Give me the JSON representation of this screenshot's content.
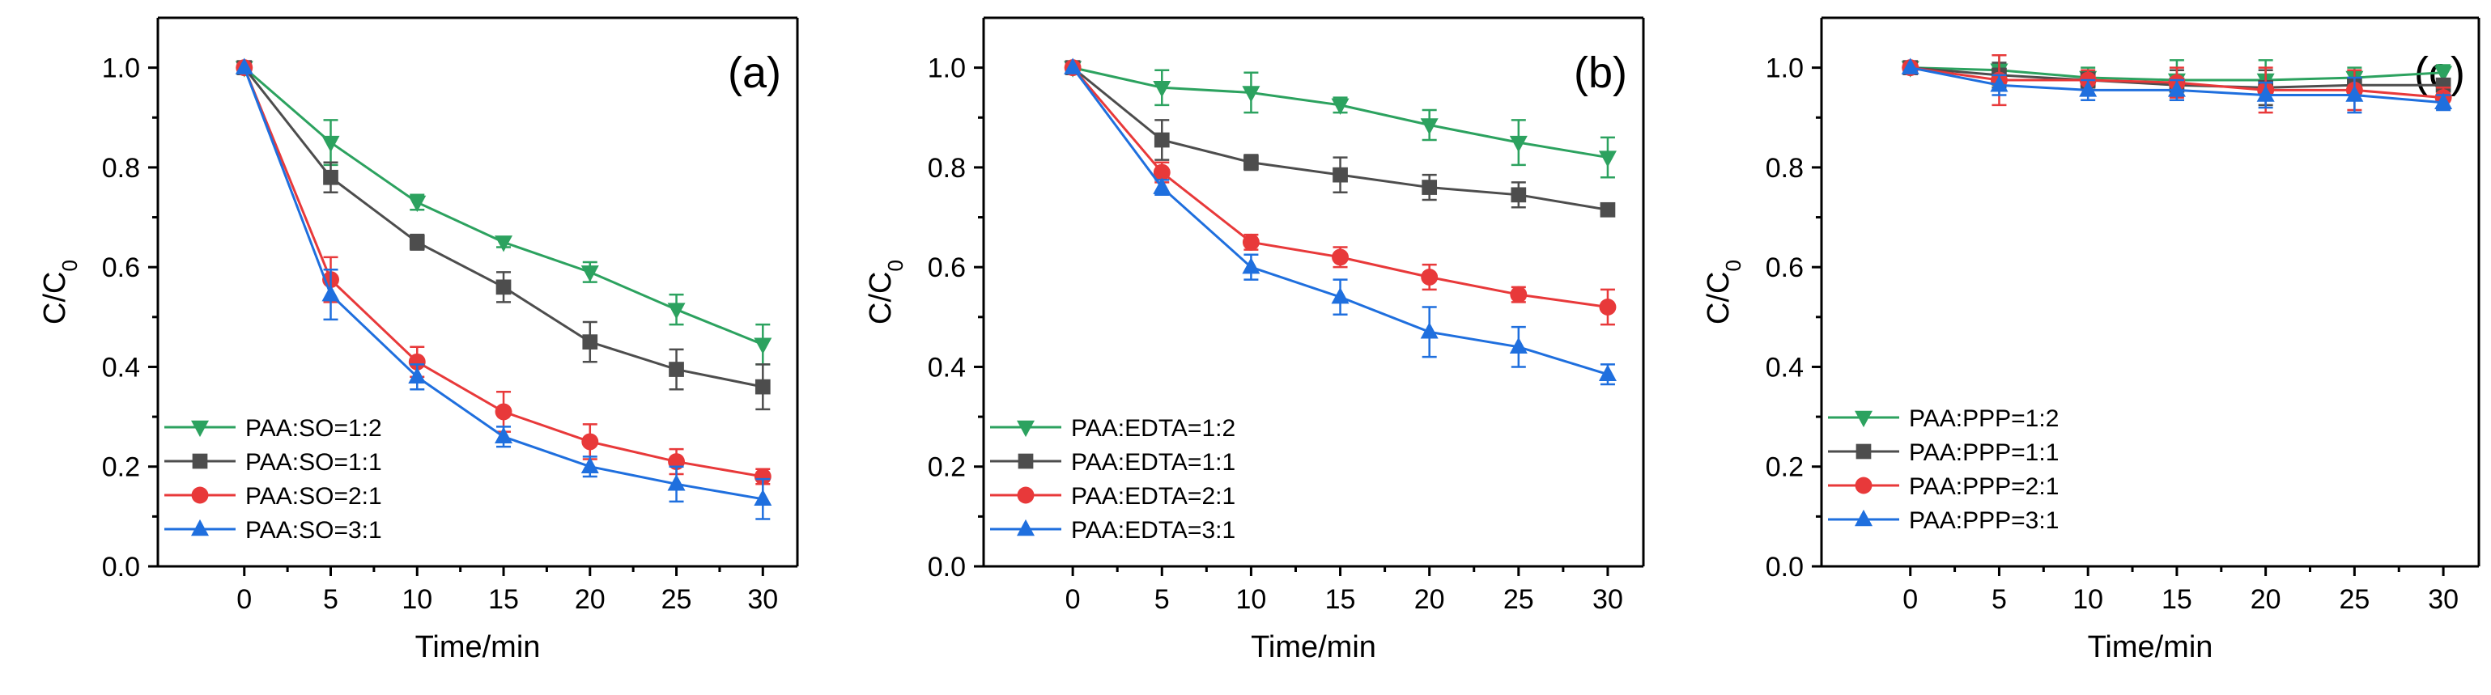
{
  "colors": {
    "green": "#2ca25f",
    "gray": "#4d4d4d",
    "red": "#e8393a",
    "blue": "#1f6fde"
  },
  "chart_data": [
    {
      "type": "line",
      "panel_label": "(a)",
      "xlabel": "Time/min",
      "ylabel": "C/C",
      "ylabel_sub": "0",
      "xlim": [
        -5,
        32
      ],
      "ylim": [
        0,
        1.1
      ],
      "xticks": [
        0,
        5,
        10,
        15,
        20,
        25,
        30
      ],
      "yticks": [
        0.0,
        0.2,
        0.4,
        0.6,
        0.8,
        1.0
      ],
      "ytick_labels": [
        "0.0",
        "0.2",
        "0.4",
        "0.6",
        "0.8",
        "1.0"
      ],
      "legend_position": "bottom-left",
      "x": [
        0,
        5,
        10,
        15,
        20,
        25,
        30
      ],
      "series": [
        {
          "name": "PAA:SO=1:2",
          "marker": "triangle-down",
          "color_key": "green",
          "values": [
            1.0,
            0.85,
            0.73,
            0.65,
            0.59,
            0.515,
            0.445
          ],
          "errors": [
            0,
            0.045,
            0.015,
            0.01,
            0.02,
            0.03,
            0.04
          ]
        },
        {
          "name": "PAA:SO=1:1",
          "marker": "square",
          "color_key": "gray",
          "values": [
            1.0,
            0.78,
            0.65,
            0.56,
            0.45,
            0.395,
            0.36
          ],
          "errors": [
            0,
            0.03,
            0.015,
            0.03,
            0.04,
            0.04,
            0.045
          ]
        },
        {
          "name": "PAA:SO=2:1",
          "marker": "circle",
          "color_key": "red",
          "values": [
            1.0,
            0.575,
            0.41,
            0.31,
            0.25,
            0.21,
            0.18
          ],
          "errors": [
            0,
            0.045,
            0.03,
            0.04,
            0.035,
            0.025,
            0.015
          ]
        },
        {
          "name": "PAA:SO=3:1",
          "marker": "triangle-up",
          "color_key": "blue",
          "values": [
            1.0,
            0.545,
            0.38,
            0.26,
            0.2,
            0.165,
            0.135
          ],
          "errors": [
            0,
            0.05,
            0.025,
            0.02,
            0.02,
            0.035,
            0.04
          ]
        }
      ]
    },
    {
      "type": "line",
      "panel_label": "(b)",
      "xlabel": "Time/min",
      "ylabel": "C/C",
      "ylabel_sub": "0",
      "xlim": [
        -5,
        32
      ],
      "ylim": [
        0,
        1.1
      ],
      "xticks": [
        0,
        5,
        10,
        15,
        20,
        25,
        30
      ],
      "yticks": [
        0.0,
        0.2,
        0.4,
        0.6,
        0.8,
        1.0
      ],
      "ytick_labels": [
        "0.0",
        "0.2",
        "0.4",
        "0.6",
        "0.8",
        "1.0"
      ],
      "legend_position": "bottom-left",
      "x": [
        0,
        5,
        10,
        15,
        20,
        25,
        30
      ],
      "series": [
        {
          "name": "PAA:EDTA=1:2",
          "marker": "triangle-down",
          "color_key": "green",
          "values": [
            1.0,
            0.96,
            0.95,
            0.925,
            0.885,
            0.85,
            0.82
          ],
          "errors": [
            0,
            0.035,
            0.04,
            0.015,
            0.03,
            0.045,
            0.04
          ]
        },
        {
          "name": "PAA:EDTA=1:1",
          "marker": "square",
          "color_key": "gray",
          "values": [
            1.0,
            0.855,
            0.81,
            0.785,
            0.76,
            0.745,
            0.715
          ],
          "errors": [
            0,
            0.04,
            0.015,
            0.035,
            0.025,
            0.025,
            0.01
          ]
        },
        {
          "name": "PAA:EDTA=2:1",
          "marker": "circle",
          "color_key": "red",
          "values": [
            1.0,
            0.79,
            0.65,
            0.62,
            0.58,
            0.545,
            0.52
          ],
          "errors": [
            0,
            0.02,
            0.015,
            0.02,
            0.025,
            0.015,
            0.035
          ]
        },
        {
          "name": "PAA:EDTA=3:1",
          "marker": "triangle-up",
          "color_key": "blue",
          "values": [
            1.0,
            0.76,
            0.6,
            0.54,
            0.47,
            0.44,
            0.385
          ],
          "errors": [
            0,
            0.015,
            0.025,
            0.035,
            0.05,
            0.04,
            0.02
          ]
        }
      ]
    },
    {
      "type": "line",
      "panel_label": "(c)",
      "xlabel": "Time/min",
      "ylabel": "C/C",
      "ylabel_sub": "0",
      "xlim": [
        -5,
        32
      ],
      "ylim": [
        0,
        1.1
      ],
      "xticks": [
        0,
        5,
        10,
        15,
        20,
        25,
        30
      ],
      "yticks": [
        0.0,
        0.2,
        0.4,
        0.6,
        0.8,
        1.0
      ],
      "ytick_labels": [
        "0.0",
        "0.2",
        "0.4",
        "0.6",
        "0.8",
        "1.0"
      ],
      "legend_position": "bottom-left",
      "x": [
        0,
        5,
        10,
        15,
        20,
        25,
        30
      ],
      "series": [
        {
          "name": "PAA:PPP=1:2",
          "marker": "triangle-down",
          "color_key": "green",
          "values": [
            1.0,
            0.995,
            0.98,
            0.975,
            0.975,
            0.98,
            0.99
          ],
          "errors": [
            0,
            0.03,
            0.02,
            0.04,
            0.04,
            0.02,
            0.015
          ]
        },
        {
          "name": "PAA:PPP=1:1",
          "marker": "square",
          "color_key": "gray",
          "values": [
            1.0,
            0.985,
            0.975,
            0.965,
            0.96,
            0.965,
            0.965
          ],
          "errors": [
            0,
            0.025,
            0.015,
            0.03,
            0.035,
            0.03,
            0.01
          ]
        },
        {
          "name": "PAA:PPP=2:1",
          "marker": "circle",
          "color_key": "red",
          "values": [
            1.0,
            0.975,
            0.975,
            0.97,
            0.955,
            0.955,
            0.94
          ],
          "errors": [
            0,
            0.05,
            0.02,
            0.03,
            0.045,
            0.04,
            0.02
          ]
        },
        {
          "name": "PAA:PPP=3:1",
          "marker": "triangle-up",
          "color_key": "blue",
          "values": [
            1.0,
            0.965,
            0.955,
            0.955,
            0.945,
            0.945,
            0.93
          ],
          "errors": [
            0,
            0.02,
            0.02,
            0.02,
            0.025,
            0.035,
            0.015
          ]
        }
      ]
    }
  ]
}
